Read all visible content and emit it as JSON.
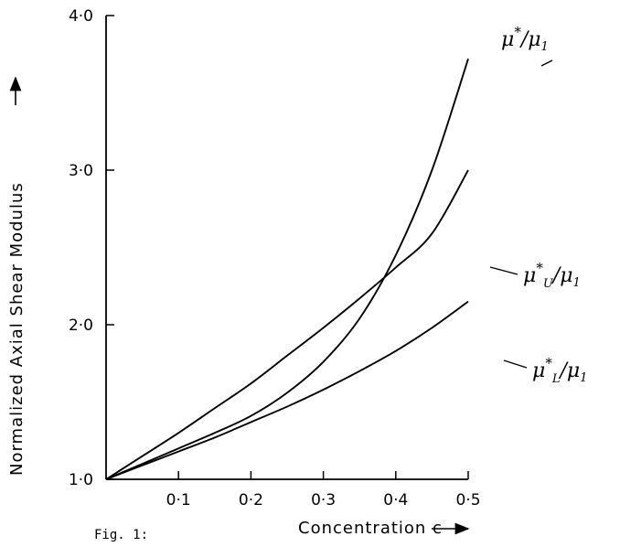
{
  "caption": "Fig. 1:",
  "chart_data": {
    "type": "line",
    "xlabel": "Concentration  c",
    "ylabel": "Normalized Axial Shear Modulus",
    "xlim": [
      0,
      0.5
    ],
    "ylim": [
      1.0,
      4.0
    ],
    "x_ticks": [
      0.1,
      0.2,
      0.3,
      0.4,
      0.5
    ],
    "x_tick_labels": [
      "0·1",
      "0·2",
      "0·3",
      "0·4",
      "0·5"
    ],
    "y_ticks": [
      1.0,
      2.0,
      3.0,
      4.0
    ],
    "y_tick_labels": [
      "1·0",
      "2·0",
      "3·0",
      "4·0"
    ],
    "grid": false,
    "series": [
      {
        "name": "μ*/μ1",
        "x": [
          0,
          0.05,
          0.1,
          0.15,
          0.2,
          0.25,
          0.3,
          0.35,
          0.4,
          0.45,
          0.5
        ],
        "y": [
          1.0,
          1.1,
          1.2,
          1.3,
          1.41,
          1.56,
          1.76,
          2.04,
          2.45,
          3.0,
          3.72
        ]
      },
      {
        "name": "μU*/μ1",
        "x": [
          0,
          0.05,
          0.1,
          0.15,
          0.2,
          0.25,
          0.3,
          0.35,
          0.4,
          0.45,
          0.5
        ],
        "y": [
          1.0,
          1.15,
          1.3,
          1.46,
          1.62,
          1.8,
          1.98,
          2.17,
          2.37,
          2.59,
          3.0
        ]
      },
      {
        "name": "μL*/μ1",
        "x": [
          0,
          0.05,
          0.1,
          0.15,
          0.2,
          0.25,
          0.3,
          0.35,
          0.4,
          0.45,
          0.5
        ],
        "y": [
          1.0,
          1.09,
          1.18,
          1.27,
          1.37,
          1.47,
          1.58,
          1.7,
          1.83,
          1.98,
          2.15
        ]
      }
    ]
  },
  "series_labels": [
    {
      "base": "μ",
      "sup": "*",
      "sub": "",
      "tail": "/μ",
      "tail_sub": "1"
    },
    {
      "base": "μ",
      "sup": "*",
      "sub": "U",
      "tail": "/μ",
      "tail_sub": "1"
    },
    {
      "base": "μ",
      "sup": "*",
      "sub": "L",
      "tail": "/μ",
      "tail_sub": "1"
    }
  ]
}
